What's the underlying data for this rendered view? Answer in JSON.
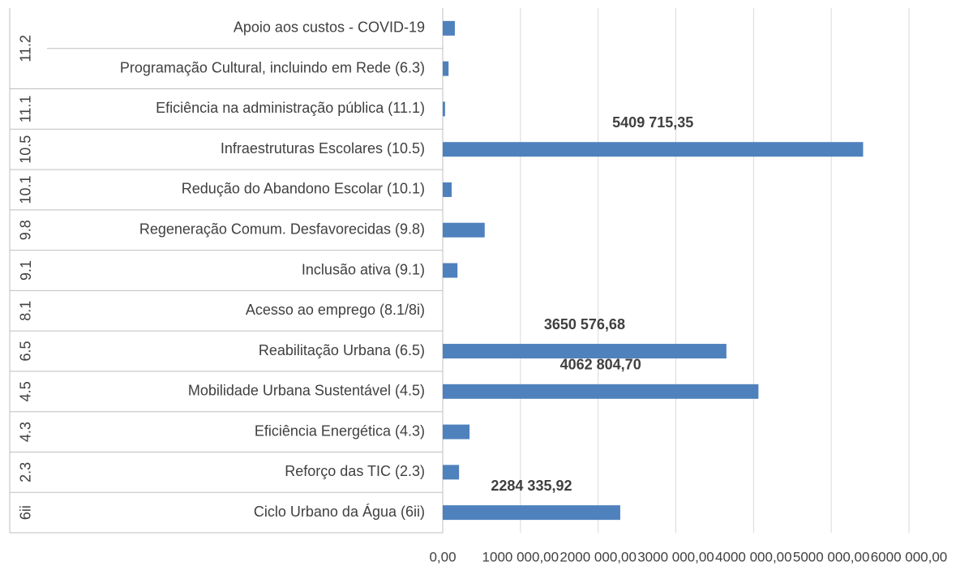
{
  "chart_data": {
    "type": "bar",
    "orientation": "horizontal",
    "categories": [
      "Apoio aos custos - COVID-19",
      "Programação Cultural, incluindo em Rede (6.3)",
      "Eficiência na administração pública (11.1)",
      "Infraestruturas Escolares (10.5)",
      "Redução do Abandono Escolar (10.1)",
      "Regeneração Comum. Desfavorecidas (9.8)",
      "Inclusão ativa (9.1)",
      "Acesso ao emprego (8.1/8i)",
      "Reabilitação Urbana (6.5)",
      "Mobilidade Urbana Sustentável (4.5)",
      "Eficiência Energética  (4.3)",
      "Reforço das TIC (2.3)",
      "Ciclo Urbano da Água (6ii)"
    ],
    "groups": [
      "11.2",
      "11.2",
      "11.1",
      "10.5",
      "10.1",
      "9.8",
      "9.1",
      "8.1",
      "6.5",
      "4.5",
      "4.3",
      "2.3",
      "6ii"
    ],
    "values": [
      156000,
      75000,
      30000,
      5409715.35,
      115000,
      540000,
      190000,
      0,
      3650576.68,
      4062804.7,
      345000,
      210000,
      2284335.92
    ],
    "value_labels": [
      null,
      null,
      null,
      "5409 715,35",
      null,
      null,
      null,
      null,
      "3650 576,68",
      "4062 804,70",
      null,
      null,
      "2284 335,92"
    ],
    "color": "#4f81bd",
    "xlim": [
      0,
      6000000
    ],
    "xticks": [
      {
        "value": 0,
        "label": "0,00"
      },
      {
        "value": 1000000,
        "label": "1000 000,00"
      },
      {
        "value": 2000000,
        "label": "2000 000,00"
      },
      {
        "value": 3000000,
        "label": "3000 000,00"
      },
      {
        "value": 4000000,
        "label": "4000 000,00"
      },
      {
        "value": 5000000,
        "label": "5000 000,00"
      },
      {
        "value": 6000000,
        "label": "6000 000,00"
      }
    ],
    "grid": true
  }
}
